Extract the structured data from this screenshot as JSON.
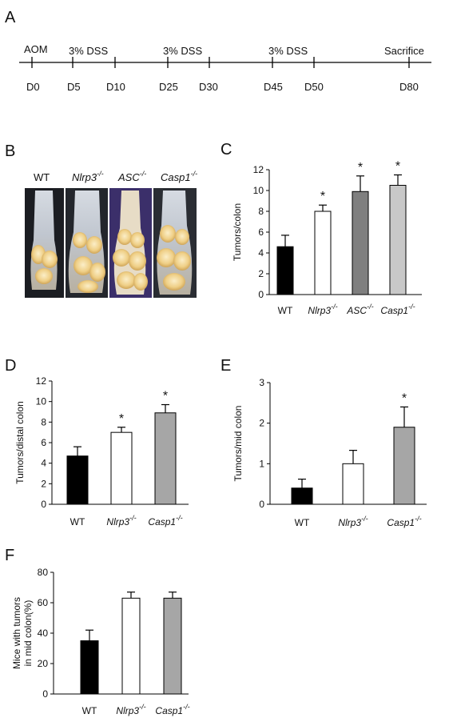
{
  "panels": {
    "a": "A",
    "b": "B",
    "c": "C",
    "d": "D",
    "e": "E",
    "f": "F"
  },
  "timeline": {
    "top_labels": [
      "AOM",
      "3% DSS",
      "3% DSS",
      "3% DSS",
      "Sacrifice"
    ],
    "days": [
      "D0",
      "D5",
      "D10",
      "D25",
      "D30",
      "D45",
      "D50",
      "D80"
    ]
  },
  "photo": {
    "labels": [
      "WT",
      "Nlrp3",
      "ASC",
      "Casp1"
    ],
    "sup": "-/-"
  },
  "colors": {
    "black": "#000000",
    "white": "#ffffff",
    "dark_gray": "#7f7f7f",
    "gray": "#a6a6a6",
    "light_gray": "#c8c8c8"
  },
  "chart_data": [
    {
      "id": "C",
      "type": "bar",
      "ylabel": "Tumors/colon",
      "ylim": [
        0,
        12
      ],
      "yticks": [
        0,
        2,
        4,
        6,
        8,
        10,
        12
      ],
      "categories": [
        "WT",
        "Nlrp3",
        "ASC",
        "Casp1"
      ],
      "cat_sup": [
        "",
        "-/-",
        "-/-",
        "-/-"
      ],
      "values": [
        4.6,
        8.0,
        9.9,
        10.5
      ],
      "errors": [
        1.1,
        0.6,
        1.5,
        1.0
      ],
      "fills": [
        "#000000",
        "#ffffff",
        "#7f7f7f",
        "#c8c8c8"
      ],
      "significant": [
        false,
        true,
        true,
        true
      ],
      "sig_label": "*"
    },
    {
      "id": "D",
      "type": "bar",
      "ylabel": "Tumors/distal colon",
      "ylim": [
        0,
        12
      ],
      "yticks": [
        0,
        2,
        4,
        6,
        8,
        10,
        12
      ],
      "categories": [
        "WT",
        "Nlrp3",
        "Casp1"
      ],
      "cat_sup": [
        "",
        "-/-",
        "-/-"
      ],
      "values": [
        4.7,
        7.0,
        8.9
      ],
      "errors": [
        0.9,
        0.5,
        0.8
      ],
      "fills": [
        "#000000",
        "#ffffff",
        "#a6a6a6"
      ],
      "significant": [
        false,
        true,
        true
      ],
      "sig_label": "*"
    },
    {
      "id": "E",
      "type": "bar",
      "ylabel": "Tumors/mid colon",
      "ylim": [
        0,
        3
      ],
      "yticks": [
        0,
        1,
        2,
        3
      ],
      "categories": [
        "WT",
        "Nlrp3",
        "Casp1"
      ],
      "cat_sup": [
        "",
        "-/-",
        "-/-"
      ],
      "values": [
        0.4,
        1.0,
        1.9
      ],
      "errors": [
        0.22,
        0.33,
        0.5
      ],
      "fills": [
        "#000000",
        "#ffffff",
        "#a6a6a6"
      ],
      "significant": [
        false,
        false,
        true
      ],
      "sig_label": "*"
    },
    {
      "id": "F",
      "type": "bar",
      "ylabel": "Mice with tumors in mid colon(%)",
      "ylabel_lines": [
        "Mice with tumors",
        "in mid colon(%)"
      ],
      "ylim": [
        0,
        80
      ],
      "yticks": [
        0,
        20,
        40,
        60,
        80
      ],
      "categories": [
        "WT",
        "Nlrp3",
        "Casp1"
      ],
      "cat_sup": [
        "",
        "-/-",
        "-/-"
      ],
      "values": [
        35,
        63,
        63
      ],
      "errors": [
        7,
        4,
        4
      ],
      "fills": [
        "#000000",
        "#ffffff",
        "#a6a6a6"
      ],
      "significant": [
        false,
        false,
        false
      ],
      "sig_label": "*"
    }
  ]
}
